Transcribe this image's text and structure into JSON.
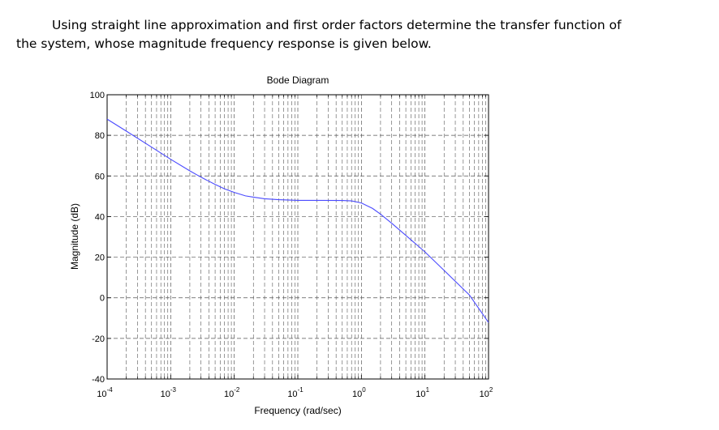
{
  "question": {
    "line1": "Using straight line approximation and first order factors determine the transfer function of",
    "line2": "the system, whose magnitude frequency response is given below."
  },
  "chart_data": {
    "type": "line",
    "title": "Bode Diagram",
    "xlabel": "Frequency (rad/sec)",
    "ylabel": "Magnitude (dB)",
    "xscale": "log",
    "xlim": [
      0.0001,
      100
    ],
    "ylim": [
      -40,
      100
    ],
    "x_ticks": [
      {
        "value": 0.0001,
        "base": "10",
        "exp": "-4"
      },
      {
        "value": 0.001,
        "base": "10",
        "exp": "-3"
      },
      {
        "value": 0.01,
        "base": "10",
        "exp": "-2"
      },
      {
        "value": 0.1,
        "base": "10",
        "exp": "-1"
      },
      {
        "value": 1,
        "base": "10",
        "exp": "0"
      },
      {
        "value": 10,
        "base": "10",
        "exp": "1"
      },
      {
        "value": 100,
        "base": "10",
        "exp": "2"
      }
    ],
    "y_ticks": [
      {
        "value": -40,
        "label": "-40"
      },
      {
        "value": -20,
        "label": "-20"
      },
      {
        "value": 0,
        "label": "0"
      },
      {
        "value": 20,
        "label": "20"
      },
      {
        "value": 40,
        "label": "40"
      },
      {
        "value": 60,
        "label": "60"
      },
      {
        "value": 80,
        "label": "80"
      },
      {
        "value": 100,
        "label": "100"
      }
    ],
    "grid": true,
    "line_color": "#4a4aff",
    "series": [
      {
        "x": [
          0.0001,
          0.0002,
          0.0005,
          0.001,
          0.002,
          0.003,
          0.005,
          0.007,
          0.01,
          0.015,
          0.02,
          0.03,
          0.05,
          0.1,
          0.2,
          0.5,
          0.7,
          1,
          1.5,
          2,
          3,
          5,
          7,
          10,
          20,
          50,
          100
        ],
        "y": [
          88,
          82.1,
          74.2,
          68.2,
          62.5,
          59.4,
          55.8,
          53.7,
          51.9,
          50.2,
          49.6,
          48.8,
          48.3,
          48,
          48,
          47.9,
          47.7,
          46.7,
          44,
          41.2,
          36.7,
          30.7,
          26.8,
          22.6,
          13.5,
          1.4,
          -12.2
        ]
      }
    ]
  }
}
